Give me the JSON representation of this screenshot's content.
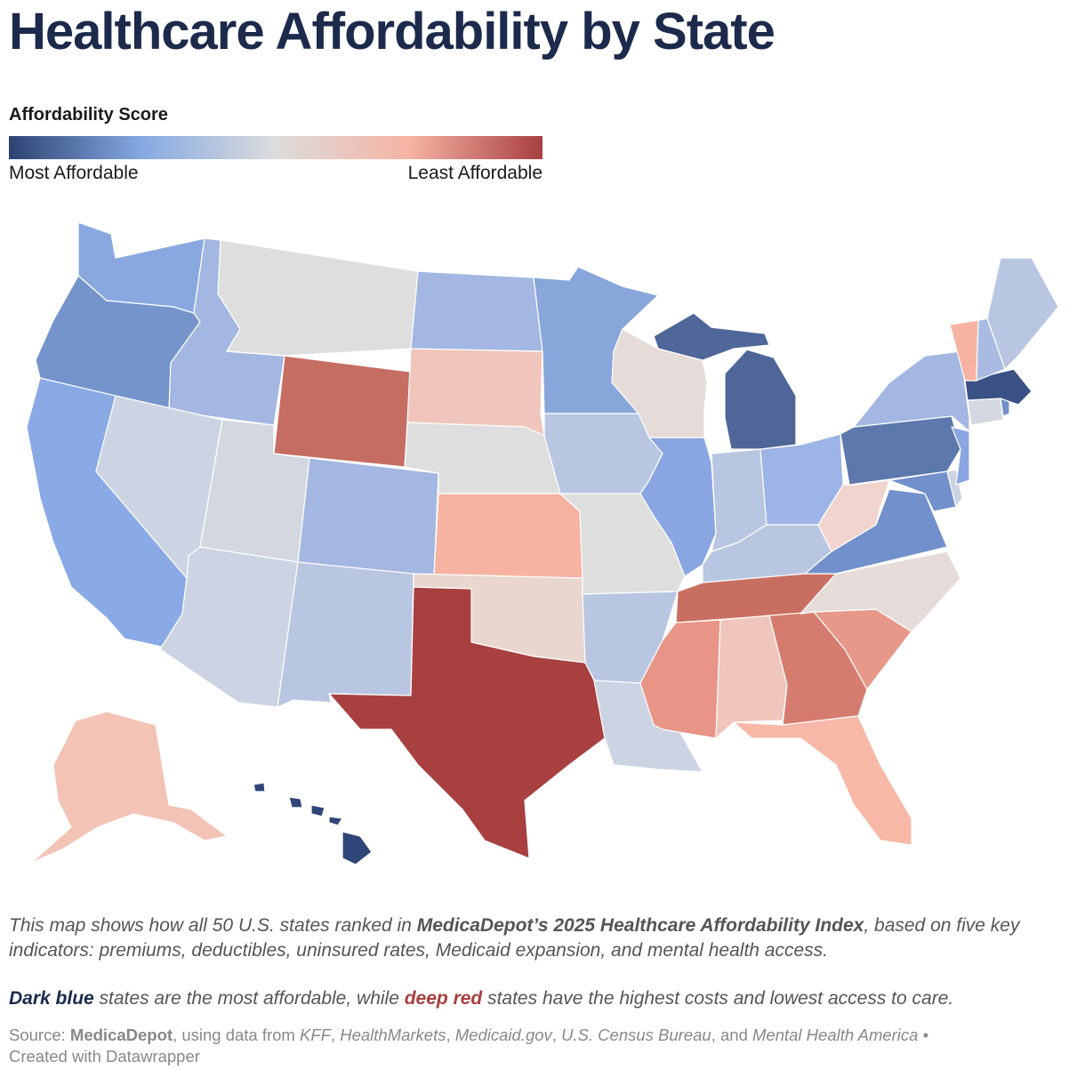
{
  "title": "Healthcare Affordability by State",
  "legend": {
    "title": "Affordability Score",
    "low_label": "Most Affordable",
    "high_label": "Least Affordable",
    "colors": [
      "#2c4373",
      "#86a9e2",
      "#dcdcdc",
      "#f6b3a3",
      "#a83f40"
    ]
  },
  "description": {
    "line1_pre": "This map shows how all 50 U.S. states ranked in ",
    "line1_bold": "MedicaDepot’s 2025 Healthcare Affordability Index",
    "line1_post": ", based on five key indicators: premiums, deductibles, uninsured rates, Medicaid expansion, and mental health access.",
    "line2_blue": "Dark blue",
    "line2_mid": " states are the most affordable, while ",
    "line2_red": "deep red",
    "line2_post": " states have the highest costs and lowest access to care."
  },
  "source": {
    "prefix": "Source: ",
    "org": "MedicaDepot",
    "using": ", using data from ",
    "s1": "KFF",
    "s2": "HealthMarkets",
    "s3": "Medicaid.gov",
    "s4": "U.S. Census Bureau",
    "and": ", and ",
    "s5": "Mental Health America",
    "bullet": " • ",
    "credit": "Created with Datawrapper"
  },
  "state_colors": {
    "WA": "#8aa8e0",
    "OR": "#7594cc",
    "CA": "#8aaae6",
    "ID": "#a3b7e2",
    "NV": "#ccd3e2",
    "MT": "#dedede",
    "WY": "#c56d62",
    "UT": "#d3d7e0",
    "AZ": "#ccd3e2",
    "CO": "#a3b7e2",
    "NM": "#b8c6e2",
    "ND": "#a3b7e2",
    "SD": "#f0c5bb",
    "NE": "#dedede",
    "KS": "#f7b3a2",
    "OK": "#e9d6cf",
    "TX": "#a84040",
    "MN": "#89a6db",
    "IA": "#b8c6e2",
    "MO": "#dedede",
    "AR": "#b8c6e2",
    "LA": "#ccd3e2",
    "WI": "#e5dbd8",
    "IL": "#89a6e3",
    "MI": "#4f6699",
    "IN": "#b8c6e2",
    "OH": "#9cb4e6",
    "KY": "#b8c6e2",
    "TN": "#c96f62",
    "MS": "#e89486",
    "AL": "#f0c5bb",
    "GA": "#d67c6f",
    "FL": "#f7b8a8",
    "SC": "#e89888",
    "NC": "#e5dbd8",
    "VA": "#7291cc",
    "WV": "#f0d4cd",
    "PA": "#5c78ad",
    "NY": "#a3b7e2",
    "VT": "#f7b3a2",
    "NH": "#a9bbe2",
    "ME": "#b8c6e2",
    "MA": "#3a5185",
    "CT": "#d3d7e0",
    "NJ": "#89a6e3",
    "DE": "#ccd3e2",
    "MD": "#7291cc",
    "RI": "#7291cc",
    "AK": "#f3c4b6",
    "HI": "#2f4678"
  }
}
